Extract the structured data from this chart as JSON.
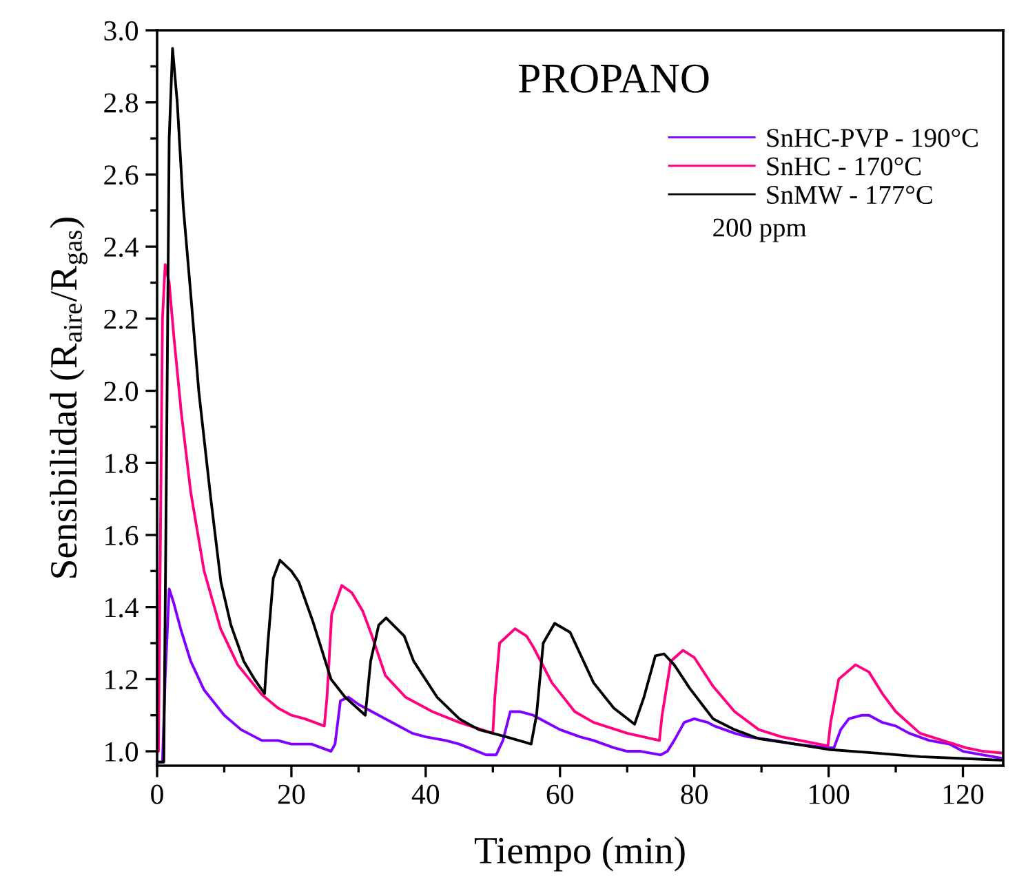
{
  "chart_data": {
    "type": "line",
    "title": "PROPANO",
    "xlabel": "Tiempo (min)",
    "ylabel": "Sensibilidad (R$_{aire}$/R$_{gas}$)",
    "annotations": [
      "200 ppm"
    ],
    "xlim": [
      0,
      126
    ],
    "xticks": [
      0,
      20,
      40,
      60,
      80,
      100,
      120
    ],
    "ylim": [
      0.96,
      3.0
    ],
    "yticks": [
      {
        "value": 1,
        "label": "1.0"
      },
      1.2,
      1.4,
      1.6,
      1.8,
      {
        "value": 2,
        "label": "2.0"
      },
      2.2,
      2.4,
      2.6,
      2.8,
      {
        "value": 3,
        "label": "3.0"
      }
    ],
    "grid": false,
    "legend": "top right",
    "marker": "none",
    "line_style": "solid",
    "series": [
      {
        "name": "SnHC-PVP - 190°C",
        "color": "#8000ff",
        "x": [
          0,
          0.8,
          1.2,
          1.8,
          2.5,
          3.5,
          5,
          7,
          10,
          12.5,
          15.6,
          18,
          20,
          23,
          25.9,
          26.5,
          27.3,
          28.5,
          30,
          31,
          33,
          35,
          38,
          40,
          43,
          45,
          49,
          50.5,
          51.5,
          52.6,
          54,
          56,
          58,
          60,
          63,
          65,
          68,
          70,
          72,
          75,
          76,
          77,
          78.5,
          80,
          82,
          83,
          86,
          88,
          92,
          95,
          100,
          100.8,
          101.8,
          103,
          105,
          106,
          108,
          110,
          112,
          115,
          118,
          120,
          123,
          126
        ],
        "values": [
          0.97,
          0.97,
          1.2,
          1.45,
          1.41,
          1.34,
          1.25,
          1.17,
          1.1,
          1.06,
          1.03,
          1.03,
          1.02,
          1.02,
          1.0,
          1.02,
          1.14,
          1.15,
          1.13,
          1.12,
          1.1,
          1.08,
          1.05,
          1.04,
          1.03,
          1.02,
          0.99,
          0.99,
          1.03,
          1.11,
          1.11,
          1.1,
          1.08,
          1.06,
          1.04,
          1.03,
          1.01,
          1.0,
          1.0,
          0.99,
          1.0,
          1.03,
          1.08,
          1.09,
          1.08,
          1.07,
          1.05,
          1.04,
          1.03,
          1.02,
          1.01,
          1.01,
          1.06,
          1.09,
          1.1,
          1.1,
          1.08,
          1.07,
          1.05,
          1.03,
          1.02,
          1.0,
          0.99,
          0.98
        ]
      },
      {
        "name": "SnHC - 170°C",
        "color": "#ff0080",
        "x": [
          0,
          0.2,
          0.5,
          0.8,
          1.2,
          1.8,
          2.5,
          3.6,
          5,
          7,
          9.45,
          12,
          15.6,
          18,
          20,
          22,
          24.9,
          25.3,
          26,
          27.5,
          29,
          30.6,
          32,
          34,
          37,
          41,
          45,
          50,
          50.3,
          51,
          53.3,
          55,
          56,
          58.8,
          62.2,
          65,
          70,
          74.8,
          75.2,
          76.5,
          78.3,
          80,
          82.8,
          86,
          89.6,
          93,
          99.9,
          100.3,
          101.5,
          104,
          106,
          108,
          110,
          113.6,
          117,
          120.4,
          123,
          126
        ],
        "values": [
          1.0,
          1.0,
          1.6,
          2.2,
          2.35,
          2.3,
          2.15,
          1.94,
          1.72,
          1.5,
          1.34,
          1.24,
          1.157,
          1.12,
          1.1,
          1.09,
          1.07,
          1.15,
          1.38,
          1.46,
          1.44,
          1.39,
          1.32,
          1.21,
          1.15,
          1.11,
          1.08,
          1.05,
          1.15,
          1.3,
          1.34,
          1.32,
          1.29,
          1.19,
          1.11,
          1.08,
          1.05,
          1.03,
          1.1,
          1.25,
          1.28,
          1.26,
          1.18,
          1.11,
          1.06,
          1.04,
          1.015,
          1.08,
          1.2,
          1.24,
          1.22,
          1.16,
          1.11,
          1.05,
          1.03,
          1.01,
          1.0,
          0.995
        ]
      },
      {
        "name": "SnMW - 177°C",
        "color": "#000000",
        "x": [
          0,
          1.0,
          1.4,
          1.8,
          2.3,
          3.0,
          3.9,
          5,
          6.2,
          8,
          9.5,
          11,
          12.9,
          14.5,
          16,
          16.5,
          17.3,
          18.3,
          20,
          21.1,
          23.2,
          25.9,
          28,
          31,
          31.8,
          33,
          34.1,
          36.8,
          38.2,
          41.7,
          45,
          47.9,
          52,
          55.7,
          56.5,
          57.5,
          59.2,
          61.5,
          65,
          68,
          71.1,
          72.5,
          74.2,
          75.5,
          77,
          79.3,
          82.8,
          86,
          89.6,
          95,
          100,
          107,
          113.6,
          120,
          126
        ],
        "values": [
          0.97,
          0.97,
          1.8,
          2.7,
          2.95,
          2.8,
          2.51,
          2.27,
          2.0,
          1.7,
          1.47,
          1.35,
          1.25,
          1.2,
          1.16,
          1.3,
          1.48,
          1.53,
          1.5,
          1.47,
          1.36,
          1.2,
          1.15,
          1.1,
          1.25,
          1.35,
          1.37,
          1.32,
          1.25,
          1.15,
          1.09,
          1.06,
          1.04,
          1.02,
          1.1,
          1.3,
          1.355,
          1.33,
          1.19,
          1.12,
          1.075,
          1.15,
          1.265,
          1.27,
          1.24,
          1.175,
          1.09,
          1.06,
          1.035,
          1.02,
          1.005,
          0.995,
          0.985,
          0.98,
          0.975
        ]
      }
    ]
  }
}
